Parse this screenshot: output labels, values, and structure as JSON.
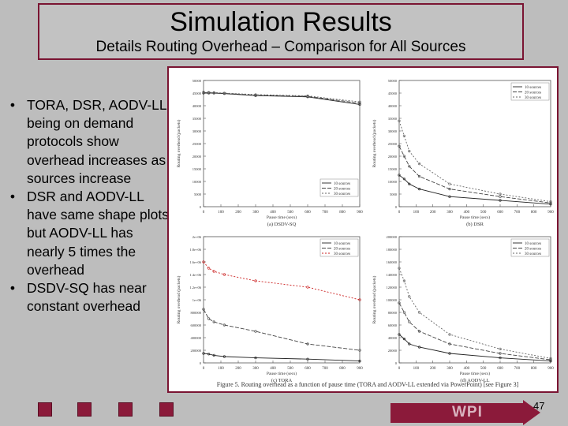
{
  "slide": {
    "title": "Simulation Results",
    "subtitle": "Details Routing Overhead – Comparison for All Sources",
    "page_number": "47",
    "footer_logo": "WPI"
  },
  "bullets": [
    "TORA, DSR, AODV-LL being on demand protocols show overhead increases as sources increase",
    "DSR and AODV-LL have same shape plots but AODV-LL has nearly 5 times the overhead",
    "DSDV-SQ has near constant overhead"
  ],
  "figure": {
    "caption": "Figure 5. Routing overhead as a function of pause time (TORA and AODV-LL extended via PowerPoint) [see Figure 3]"
  },
  "chart_data": [
    {
      "type": "line",
      "title": "(a) DSDV-SQ",
      "xlabel": "Pause time (secs)",
      "ylabel": "Routing overhead (packets)",
      "x": [
        0,
        30,
        60,
        120,
        300,
        600,
        900
      ],
      "xticks": [
        "0",
        "100",
        "200",
        "300",
        "400",
        "500",
        "600",
        "700",
        "800",
        "900"
      ],
      "yticks": [
        "0",
        "5000",
        "10000",
        "15000",
        "20000",
        "25000",
        "30000",
        "35000",
        "40000",
        "45000",
        "50000"
      ],
      "ylim": [
        0,
        50000
      ],
      "legend": "bottom-right",
      "series": [
        {
          "name": "10 sources",
          "values": [
            45000,
            45000,
            45000,
            44800,
            44000,
            43500,
            40500
          ]
        },
        {
          "name": "20 sources",
          "values": [
            45200,
            45100,
            45100,
            44900,
            44200,
            43700,
            41000
          ]
        },
        {
          "name": "30 sources",
          "values": [
            45400,
            45300,
            45200,
            45000,
            44400,
            43900,
            41500
          ]
        }
      ],
      "series_colors": [
        "#222222",
        "#444444",
        "#666666"
      ]
    },
    {
      "type": "line",
      "title": "(b) DSR",
      "xlabel": "Pause time (secs)",
      "ylabel": "Routing overhead (packets)",
      "x": [
        0,
        30,
        60,
        120,
        300,
        600,
        900
      ],
      "xticks": [
        "0",
        "100",
        "200",
        "300",
        "400",
        "500",
        "600",
        "700",
        "800",
        "900"
      ],
      "yticks": [
        "0",
        "5000",
        "10000",
        "15000",
        "20000",
        "25000",
        "30000",
        "35000",
        "40000",
        "45000",
        "50000"
      ],
      "ylim": [
        0,
        50000
      ],
      "legend": "top-right",
      "series": [
        {
          "name": "10 sources",
          "values": [
            12500,
            11000,
            9000,
            7000,
            4000,
            2500,
            1000
          ]
        },
        {
          "name": "20 sources",
          "values": [
            24000,
            20000,
            16000,
            12000,
            7000,
            4000,
            1500
          ]
        },
        {
          "name": "30 sources",
          "values": [
            34000,
            28000,
            22000,
            17000,
            9000,
            5000,
            2000
          ]
        }
      ],
      "series_colors": [
        "#222222",
        "#444444",
        "#666666"
      ]
    },
    {
      "type": "line",
      "title": "(c) TORA",
      "xlabel": "Pause time (secs)",
      "ylabel": "Routing overhead (packets)",
      "x": [
        0,
        30,
        60,
        120,
        300,
        600,
        900
      ],
      "xticks": [
        "0",
        "100",
        "200",
        "300",
        "400",
        "500",
        "600",
        "700",
        "800",
        "900"
      ],
      "yticks": [
        "0",
        "200000",
        "400000",
        "600000",
        "800000",
        "1e+06",
        "1.2e+06",
        "1.4e+06",
        "1.6e+06",
        "1.8e+06",
        "2e+06"
      ],
      "ylim": [
        0,
        2000000
      ],
      "legend": "top-right",
      "series": [
        {
          "name": "10 sources",
          "values": [
            150000,
            140000,
            120000,
            100000,
            80000,
            60000,
            30000
          ]
        },
        {
          "name": "20 sources",
          "values": [
            850000,
            700000,
            650000,
            600000,
            500000,
            300000,
            200000
          ]
        },
        {
          "name": "30 sources",
          "values": [
            1600000,
            1500000,
            1450000,
            1400000,
            1300000,
            1200000,
            1000000
          ]
        }
      ],
      "series_colors": [
        "#222222",
        "#444444",
        "#cc2222"
      ]
    },
    {
      "type": "line",
      "title": "(d) AODV-LL",
      "xlabel": "Pause time (secs)",
      "ylabel": "Routing overhead (packets)",
      "x": [
        0,
        30,
        60,
        120,
        300,
        600,
        900
      ],
      "xticks": [
        "0",
        "100",
        "200",
        "300",
        "400",
        "500",
        "600",
        "700",
        "800",
        "900"
      ],
      "yticks": [
        "0",
        "20000",
        "40000",
        "60000",
        "80000",
        "100000",
        "120000",
        "140000",
        "160000",
        "180000",
        "200000"
      ],
      "ylim": [
        0,
        200000
      ],
      "legend": "top-right",
      "series": [
        {
          "name": "10 sources",
          "values": [
            45000,
            38000,
            30000,
            25000,
            15000,
            8000,
            3000
          ]
        },
        {
          "name": "20 sources",
          "values": [
            95000,
            80000,
            65000,
            50000,
            30000,
            15000,
            5000
          ]
        },
        {
          "name": "30 sources",
          "values": [
            150000,
            130000,
            105000,
            80000,
            45000,
            22000,
            7000
          ]
        }
      ],
      "series_colors": [
        "#222222",
        "#444444",
        "#666666"
      ]
    }
  ]
}
